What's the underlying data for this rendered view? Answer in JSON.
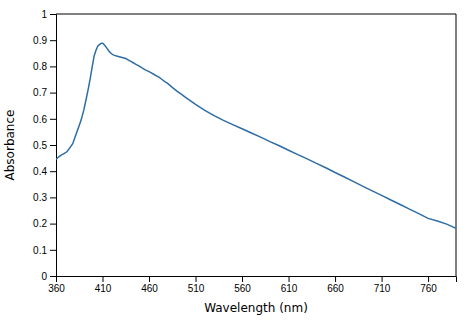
{
  "chart_data": {
    "type": "line",
    "xlabel": "Wavelength (nm)",
    "ylabel": "Absorbance",
    "color": "#2e6da4",
    "xlim": [
      360,
      790
    ],
    "ylim": [
      0,
      1
    ],
    "xticks": [
      360,
      410,
      460,
      510,
      560,
      610,
      660,
      710,
      760
    ],
    "yticks": [
      0,
      0.1,
      0.2,
      0.3,
      0.4,
      0.5,
      0.6,
      0.7,
      0.8,
      0.9,
      1
    ],
    "x": [
      360,
      363,
      366,
      369,
      372,
      375,
      378,
      381,
      384,
      387,
      390,
      393,
      395,
      397,
      399,
      401,
      403,
      405,
      407,
      408,
      409,
      410,
      411,
      412,
      413,
      415,
      417,
      419,
      421,
      423,
      425,
      427,
      429,
      431,
      433,
      435,
      437,
      439,
      441,
      443,
      445,
      447,
      450,
      453,
      456,
      459,
      462,
      465,
      468,
      471,
      474,
      477,
      480,
      485,
      490,
      495,
      500,
      510,
      520,
      530,
      540,
      550,
      560,
      570,
      580,
      590,
      600,
      610,
      620,
      630,
      640,
      650,
      660,
      670,
      680,
      690,
      700,
      710,
      720,
      730,
      740,
      750,
      760,
      770,
      780,
      790
    ],
    "values": [
      0.445,
      0.455,
      0.462,
      0.468,
      0.475,
      0.49,
      0.505,
      0.535,
      0.565,
      0.595,
      0.635,
      0.685,
      0.72,
      0.758,
      0.8,
      0.84,
      0.862,
      0.878,
      0.884,
      0.887,
      0.888,
      0.888,
      0.886,
      0.882,
      0.878,
      0.868,
      0.858,
      0.85,
      0.845,
      0.842,
      0.84,
      0.838,
      0.836,
      0.834,
      0.832,
      0.83,
      0.826,
      0.822,
      0.818,
      0.814,
      0.81,
      0.806,
      0.8,
      0.793,
      0.787,
      0.782,
      0.776,
      0.77,
      0.764,
      0.758,
      0.75,
      0.742,
      0.735,
      0.72,
      0.706,
      0.693,
      0.68,
      0.655,
      0.632,
      0.612,
      0.594,
      0.578,
      0.562,
      0.546,
      0.53,
      0.513,
      0.497,
      0.48,
      0.463,
      0.447,
      0.43,
      0.413,
      0.395,
      0.378,
      0.36,
      0.342,
      0.325,
      0.308,
      0.29,
      0.273,
      0.255,
      0.238,
      0.22,
      0.21,
      0.198,
      0.182
    ]
  }
}
